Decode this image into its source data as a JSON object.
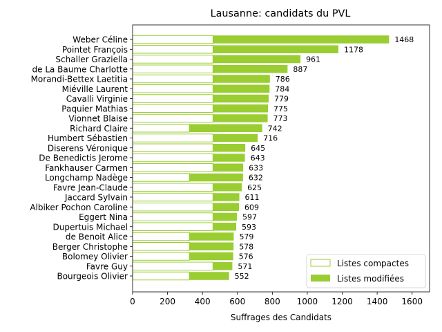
{
  "chart_data": {
    "type": "bar",
    "orientation": "horizontal",
    "stacked": true,
    "title": "Lausanne: candidats du PVL",
    "xlabel": "Suffrages des Candidats",
    "ylabel": "",
    "xlim": [
      0,
      1700
    ],
    "xticks": [
      0,
      200,
      400,
      600,
      800,
      1000,
      1200,
      1400,
      1600
    ],
    "grid": false,
    "legend_position": "lower-right",
    "colors": {
      "compact_edge": "#9acd32",
      "compact_fill": "#ffffff",
      "modified_fill": "#9acd32"
    },
    "categories": [
      "Weber Céline",
      "Pointet François",
      "Schaller Graziella",
      "de La Baume Charlotte",
      "Morandi-Bettex Laetitia",
      "Miéville Laurent",
      "Cavalli Virginie",
      "Paquier Mathias",
      "Vionnet Blaise",
      "Richard Claire",
      "Humbert Sébastien",
      "Diserens Véronique",
      "De Benedictis Jerome",
      "Fankhauser Carmen",
      "Longchamp Nadège",
      "Favre Jean-Claude",
      "Jaccard Sylvain",
      "Albiker Pochon Caroline",
      "Eggert Nina",
      "Dupertuis Michael",
      "de Benoit Alice",
      "Berger Christophe",
      "Bolomey Olivier",
      "Favre Guy",
      "Bourgeois Olivier"
    ],
    "series": [
      {
        "name": "Listes compactes",
        "values": [
          460,
          460,
          460,
          460,
          460,
          460,
          460,
          460,
          460,
          325,
          460,
          460,
          460,
          460,
          325,
          460,
          460,
          460,
          460,
          460,
          325,
          325,
          325,
          460,
          325
        ]
      },
      {
        "name": "Listes modifiées",
        "values": [
          1008,
          718,
          501,
          427,
          326,
          324,
          319,
          315,
          313,
          417,
          256,
          185,
          183,
          173,
          307,
          165,
          151,
          149,
          137,
          133,
          254,
          253,
          251,
          111,
          227
        ]
      }
    ],
    "totals": [
      "1468",
      "1178",
      "961",
      "887",
      "786",
      "784",
      "779",
      "775",
      "773",
      "742",
      "716",
      "645",
      "643",
      "633",
      "632",
      "625",
      "611",
      "609",
      "597",
      "593",
      "579",
      "578",
      "576",
      "571",
      "552"
    ]
  }
}
